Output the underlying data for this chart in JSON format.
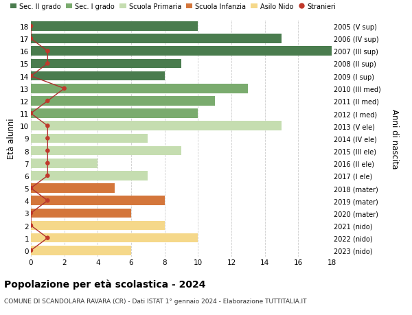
{
  "ages": [
    18,
    17,
    16,
    15,
    14,
    13,
    12,
    11,
    10,
    9,
    8,
    7,
    6,
    5,
    4,
    3,
    2,
    1,
    0
  ],
  "years": [
    "2005 (V sup)",
    "2006 (IV sup)",
    "2007 (III sup)",
    "2008 (II sup)",
    "2009 (I sup)",
    "2010 (III med)",
    "2011 (II med)",
    "2012 (I med)",
    "2013 (V ele)",
    "2014 (IV ele)",
    "2015 (III ele)",
    "2016 (II ele)",
    "2017 (I ele)",
    "2018 (mater)",
    "2019 (mater)",
    "2020 (mater)",
    "2021 (nido)",
    "2022 (nido)",
    "2023 (nido)"
  ],
  "bar_values": [
    10,
    15,
    18,
    9,
    8,
    13,
    11,
    10,
    15,
    7,
    9,
    4,
    7,
    5,
    8,
    6,
    8,
    10,
    6
  ],
  "bar_colors": [
    "#4a7c4e",
    "#4a7c4e",
    "#4a7c4e",
    "#4a7c4e",
    "#4a7c4e",
    "#7aab6e",
    "#7aab6e",
    "#7aab6e",
    "#c5ddb0",
    "#c5ddb0",
    "#c5ddb0",
    "#c5ddb0",
    "#c5ddb0",
    "#d4763b",
    "#d4763b",
    "#d4763b",
    "#f5d88a",
    "#f5d88a",
    "#f5d88a"
  ],
  "stranieri_values": [
    0,
    0,
    1,
    1,
    0,
    2,
    1,
    0,
    1,
    1,
    1,
    1,
    1,
    0,
    1,
    0,
    0,
    1,
    0
  ],
  "xlim": [
    0,
    18
  ],
  "ylim": [
    -0.5,
    18.5
  ],
  "ylabel": "Età alunni",
  "ylabel2": "Anni di nascita",
  "title": "Popolazione per età scolastica - 2024",
  "subtitle": "COMUNE DI SCANDOLARA RAVARA (CR) - Dati ISTAT 1° gennaio 2024 - Elaborazione TUTTITALIA.IT",
  "legend_labels": [
    "Sec. II grado",
    "Sec. I grado",
    "Scuola Primaria",
    "Scuola Infanzia",
    "Asilo Nido",
    "Stranieri"
  ],
  "legend_colors": [
    "#4a7c4e",
    "#7aab6e",
    "#c5ddb0",
    "#d4763b",
    "#f5d88a",
    "#c0392b"
  ],
  "grid_color": "#cccccc",
  "bg_color": "#ffffff",
  "bar_height": 0.75
}
